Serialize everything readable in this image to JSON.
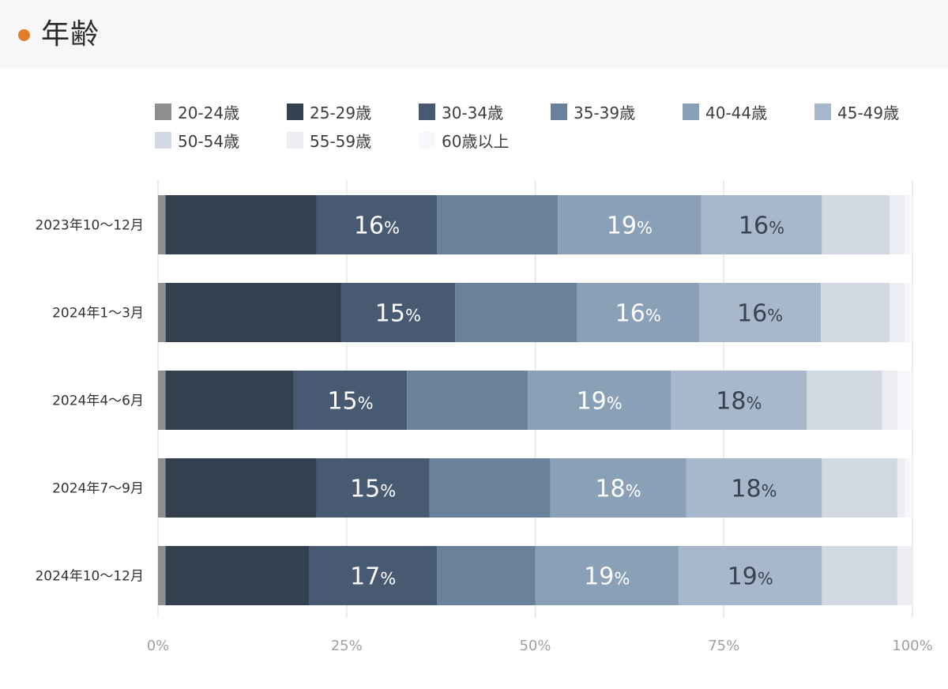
{
  "header": {
    "title": "年齢"
  },
  "colors": {
    "accent": "#e07e2a",
    "series": [
      "#8e8e8f",
      "#33404f",
      "#475a72",
      "#6a819b",
      "#8aa0b6",
      "#a7b8cc",
      "#d3d9e2",
      "#eceef4",
      "#f8f7fb"
    ]
  },
  "chart_data": {
    "type": "bar",
    "orientation": "horizontal",
    "stacked": "percent",
    "categories": [
      "2023年10〜12月",
      "2024年1〜3月",
      "2024年4〜6月",
      "2024年7〜9月",
      "2024年10〜12月"
    ],
    "series": [
      {
        "name": "20-24歳",
        "values": [
          1,
          1,
          1,
          1,
          1
        ]
      },
      {
        "name": "25-29歳",
        "values": [
          20,
          23,
          17,
          20,
          19
        ]
      },
      {
        "name": "30-34歳",
        "values": [
          16,
          15,
          15,
          15,
          17
        ]
      },
      {
        "name": "35-39歳",
        "values": [
          16,
          16,
          16,
          16,
          13
        ]
      },
      {
        "name": "40-44歳",
        "values": [
          19,
          16,
          19,
          18,
          19
        ]
      },
      {
        "name": "45-49歳",
        "values": [
          16,
          16,
          18,
          18,
          19
        ]
      },
      {
        "name": "50-54歳",
        "values": [
          9,
          9,
          10,
          10,
          10
        ]
      },
      {
        "name": "55-59歳",
        "values": [
          2,
          2,
          2,
          1,
          2
        ]
      },
      {
        "name": "60歳以上",
        "values": [
          1,
          1,
          2,
          1,
          0
        ]
      }
    ],
    "data_labels": [
      [
        null,
        null,
        "16",
        null,
        "19",
        "16",
        null,
        null,
        null
      ],
      [
        null,
        null,
        "15",
        null,
        "16",
        "16",
        null,
        null,
        null
      ],
      [
        null,
        null,
        "15",
        null,
        "19",
        "18",
        null,
        null,
        null
      ],
      [
        null,
        null,
        "15",
        null,
        "18",
        "18",
        null,
        null,
        null
      ],
      [
        null,
        null,
        "17",
        null,
        "19",
        "19",
        null,
        null,
        null
      ]
    ],
    "label_unit": "%",
    "xlim": [
      0,
      100
    ],
    "x_ticks": [
      "0%",
      "25%",
      "50%",
      "75%",
      "100%"
    ],
    "grid": true,
    "legend": "top"
  }
}
